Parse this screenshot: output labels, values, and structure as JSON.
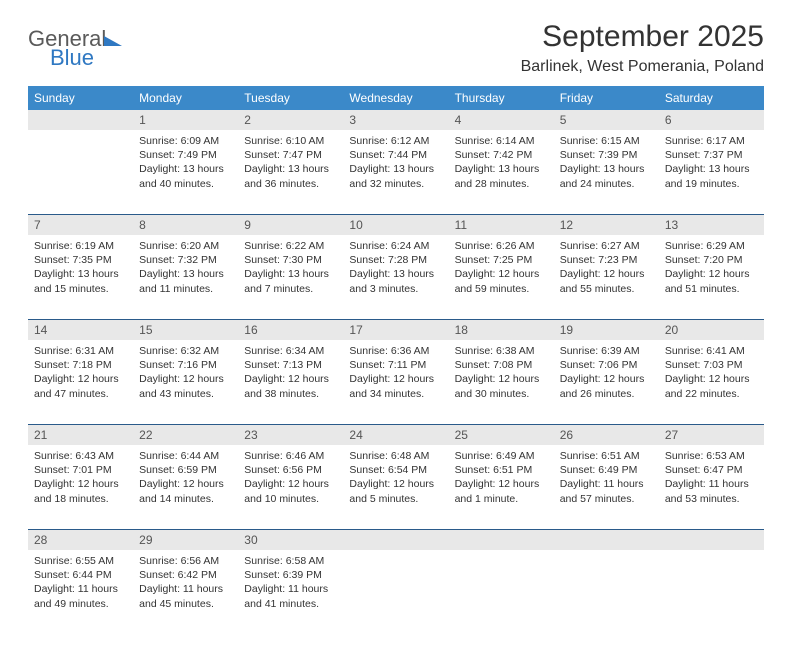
{
  "brand": {
    "part1": "General",
    "part2": "Blue"
  },
  "title": "September 2025",
  "location": "Barlinek, West Pomerania, Poland",
  "colors": {
    "header_bg": "#3b89c9",
    "header_text": "#ffffff",
    "daynum_bg": "#e8e8e8",
    "divider": "#2a5a8a",
    "text": "#333333",
    "brand_blue": "#2f78c2"
  },
  "fonts": {
    "title_size_pt": 22,
    "location_size_pt": 12,
    "weekday_size_pt": 9,
    "body_size_pt": 8
  },
  "weekdays": [
    "Sunday",
    "Monday",
    "Tuesday",
    "Wednesday",
    "Thursday",
    "Friday",
    "Saturday"
  ],
  "weeks": [
    [
      {
        "n": "",
        "sunrise": "",
        "sunset": "",
        "daylight": ""
      },
      {
        "n": "1",
        "sunrise": "6:09 AM",
        "sunset": "7:49 PM",
        "daylight": "13 hours and 40 minutes."
      },
      {
        "n": "2",
        "sunrise": "6:10 AM",
        "sunset": "7:47 PM",
        "daylight": "13 hours and 36 minutes."
      },
      {
        "n": "3",
        "sunrise": "6:12 AM",
        "sunset": "7:44 PM",
        "daylight": "13 hours and 32 minutes."
      },
      {
        "n": "4",
        "sunrise": "6:14 AM",
        "sunset": "7:42 PM",
        "daylight": "13 hours and 28 minutes."
      },
      {
        "n": "5",
        "sunrise": "6:15 AM",
        "sunset": "7:39 PM",
        "daylight": "13 hours and 24 minutes."
      },
      {
        "n": "6",
        "sunrise": "6:17 AM",
        "sunset": "7:37 PM",
        "daylight": "13 hours and 19 minutes."
      }
    ],
    [
      {
        "n": "7",
        "sunrise": "6:19 AM",
        "sunset": "7:35 PM",
        "daylight": "13 hours and 15 minutes."
      },
      {
        "n": "8",
        "sunrise": "6:20 AM",
        "sunset": "7:32 PM",
        "daylight": "13 hours and 11 minutes."
      },
      {
        "n": "9",
        "sunrise": "6:22 AM",
        "sunset": "7:30 PM",
        "daylight": "13 hours and 7 minutes."
      },
      {
        "n": "10",
        "sunrise": "6:24 AM",
        "sunset": "7:28 PM",
        "daylight": "13 hours and 3 minutes."
      },
      {
        "n": "11",
        "sunrise": "6:26 AM",
        "sunset": "7:25 PM",
        "daylight": "12 hours and 59 minutes."
      },
      {
        "n": "12",
        "sunrise": "6:27 AM",
        "sunset": "7:23 PM",
        "daylight": "12 hours and 55 minutes."
      },
      {
        "n": "13",
        "sunrise": "6:29 AM",
        "sunset": "7:20 PM",
        "daylight": "12 hours and 51 minutes."
      }
    ],
    [
      {
        "n": "14",
        "sunrise": "6:31 AM",
        "sunset": "7:18 PM",
        "daylight": "12 hours and 47 minutes."
      },
      {
        "n": "15",
        "sunrise": "6:32 AM",
        "sunset": "7:16 PM",
        "daylight": "12 hours and 43 minutes."
      },
      {
        "n": "16",
        "sunrise": "6:34 AM",
        "sunset": "7:13 PM",
        "daylight": "12 hours and 38 minutes."
      },
      {
        "n": "17",
        "sunrise": "6:36 AM",
        "sunset": "7:11 PM",
        "daylight": "12 hours and 34 minutes."
      },
      {
        "n": "18",
        "sunrise": "6:38 AM",
        "sunset": "7:08 PM",
        "daylight": "12 hours and 30 minutes."
      },
      {
        "n": "19",
        "sunrise": "6:39 AM",
        "sunset": "7:06 PM",
        "daylight": "12 hours and 26 minutes."
      },
      {
        "n": "20",
        "sunrise": "6:41 AM",
        "sunset": "7:03 PM",
        "daylight": "12 hours and 22 minutes."
      }
    ],
    [
      {
        "n": "21",
        "sunrise": "6:43 AM",
        "sunset": "7:01 PM",
        "daylight": "12 hours and 18 minutes."
      },
      {
        "n": "22",
        "sunrise": "6:44 AM",
        "sunset": "6:59 PM",
        "daylight": "12 hours and 14 minutes."
      },
      {
        "n": "23",
        "sunrise": "6:46 AM",
        "sunset": "6:56 PM",
        "daylight": "12 hours and 10 minutes."
      },
      {
        "n": "24",
        "sunrise": "6:48 AM",
        "sunset": "6:54 PM",
        "daylight": "12 hours and 5 minutes."
      },
      {
        "n": "25",
        "sunrise": "6:49 AM",
        "sunset": "6:51 PM",
        "daylight": "12 hours and 1 minute."
      },
      {
        "n": "26",
        "sunrise": "6:51 AM",
        "sunset": "6:49 PM",
        "daylight": "11 hours and 57 minutes."
      },
      {
        "n": "27",
        "sunrise": "6:53 AM",
        "sunset": "6:47 PM",
        "daylight": "11 hours and 53 minutes."
      }
    ],
    [
      {
        "n": "28",
        "sunrise": "6:55 AM",
        "sunset": "6:44 PM",
        "daylight": "11 hours and 49 minutes."
      },
      {
        "n": "29",
        "sunrise": "6:56 AM",
        "sunset": "6:42 PM",
        "daylight": "11 hours and 45 minutes."
      },
      {
        "n": "30",
        "sunrise": "6:58 AM",
        "sunset": "6:39 PM",
        "daylight": "11 hours and 41 minutes."
      },
      {
        "n": "",
        "sunrise": "",
        "sunset": "",
        "daylight": ""
      },
      {
        "n": "",
        "sunrise": "",
        "sunset": "",
        "daylight": ""
      },
      {
        "n": "",
        "sunrise": "",
        "sunset": "",
        "daylight": ""
      },
      {
        "n": "",
        "sunrise": "",
        "sunset": "",
        "daylight": ""
      }
    ]
  ],
  "labels": {
    "sunrise": "Sunrise:",
    "sunset": "Sunset:",
    "daylight": "Daylight:"
  }
}
